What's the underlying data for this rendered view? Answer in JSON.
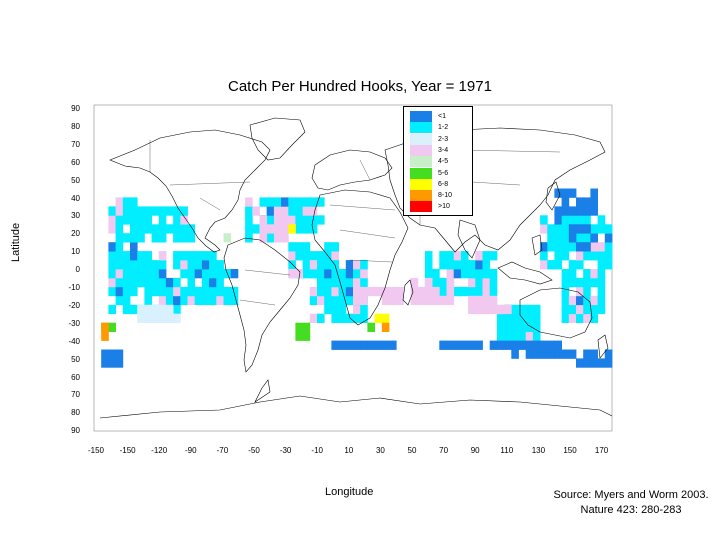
{
  "title": "Catch Per Hundred Hooks, Year = 1971",
  "y_axis_label": "Latitude",
  "x_axis_label": "Longitude",
  "source_line1": "Source: Myers and Worm 2003.",
  "source_line2": "Nature 423: 280-283",
  "lat_ticks": [
    "90",
    "80",
    "70",
    "60",
    "50",
    "40",
    "30",
    "20",
    "10",
    "0",
    "-10",
    "-20",
    "-30",
    "-40",
    "50",
    "60",
    "70",
    "80",
    "90"
  ],
  "lon_ticks": [
    "-150",
    "-150",
    "-120",
    "-90",
    "-70",
    "-50",
    "-30",
    "-10",
    "10",
    "30",
    "50",
    "70",
    "90",
    "110",
    "130",
    "150",
    "170"
  ],
  "legend": [
    {
      "label": "<1",
      "color": "#1a7fe6"
    },
    {
      "label": "1-2",
      "color": "#00eeff"
    },
    {
      "label": "2-3",
      "color": "#d9f0ff"
    },
    {
      "label": "3-4",
      "color": "#f0c8f0"
    },
    {
      "label": "4-5",
      "color": "#c8f0c8"
    },
    {
      "label": "5-6",
      "color": "#44dd22"
    },
    {
      "label": "6-8",
      "color": "#ffff00"
    },
    {
      "label": "8-10",
      "color": "#ff9900"
    },
    {
      "label": ">10",
      "color": "#ff0000"
    }
  ],
  "chart_data": {
    "type": "heatmap",
    "title": "Catch Per Hundred Hooks, Year = 1971",
    "xlabel": "Longitude",
    "ylabel": "Latitude",
    "xlim": [
      -180,
      180
    ],
    "ylim": [
      -90,
      90
    ],
    "cell_size_deg": 5,
    "scale_labels": [
      "<1",
      "1-2",
      "2-3",
      "3-4",
      "4-5",
      "5-6",
      "6-8",
      "8-10",
      ">10"
    ],
    "regions": [
      {
        "lon": [
          -170,
          -120
        ],
        "lat": [
          -25,
          10
        ],
        "class": 1
      },
      {
        "lon": [
          -170,
          -150
        ],
        "lat": [
          10,
          40
        ],
        "class": 1
      },
      {
        "lon": [
          -150,
          -110
        ],
        "lat": [
          15,
          35
        ],
        "class": 1
      },
      {
        "lon": [
          -120,
          -90
        ],
        "lat": [
          -20,
          10
        ],
        "class": 1
      },
      {
        "lon": [
          -90,
          -80
        ],
        "lat": [
          -20,
          0
        ],
        "class": 1
      },
      {
        "lon": [
          -75,
          -55
        ],
        "lat": [
          15,
          40
        ],
        "class": 1
      },
      {
        "lon": [
          -60,
          -20
        ],
        "lat": [
          20,
          40
        ],
        "class": 1
      },
      {
        "lon": [
          -45,
          -10
        ],
        "lat": [
          -5,
          15
        ],
        "class": 1
      },
      {
        "lon": [
          -30,
          10
        ],
        "lat": [
          -30,
          5
        ],
        "class": 1
      },
      {
        "lon": [
          50,
          100
        ],
        "lat": [
          -15,
          10
        ],
        "class": 1
      },
      {
        "lon": [
          100,
          130
        ],
        "lat": [
          -40,
          -20
        ],
        "class": 1
      },
      {
        "lon": [
          130,
          180
        ],
        "lat": [
          0,
          30
        ],
        "class": 1
      },
      {
        "lon": [
          145,
          175
        ],
        "lat": [
          -30,
          0
        ],
        "class": 1
      },
      {
        "lon": [
          140,
          170
        ],
        "lat": [
          30,
          45
        ],
        "class": 0
      },
      {
        "lon": [
          150,
          165
        ],
        "lat": [
          10,
          25
        ],
        "class": 0
      },
      {
        "lon": [
          -175,
          -160
        ],
        "lat": [
          -55,
          -45
        ],
        "class": 0
      },
      {
        "lon": [
          -20,
          30
        ],
        "lat": [
          -45,
          -40
        ],
        "class": 0
      },
      {
        "lon": [
          60,
          110
        ],
        "lat": [
          -45,
          -40
        ],
        "class": 0
      },
      {
        "lon": [
          110,
          150
        ],
        "lat": [
          -50,
          -40
        ],
        "class": 0
      },
      {
        "lon": [
          150,
          180
        ],
        "lat": [
          -55,
          -45
        ],
        "class": 0
      },
      {
        "lon": [
          -150,
          -120
        ],
        "lat": [
          -30,
          -20
        ],
        "class": 2
      },
      {
        "lon": [
          -65,
          -45
        ],
        "lat": [
          15,
          30
        ],
        "class": 3
      },
      {
        "lon": [
          0,
          35
        ],
        "lat": [
          -20,
          -10
        ],
        "class": 3
      },
      {
        "lon": [
          40,
          70
        ],
        "lat": [
          -20,
          -5
        ],
        "class": 3
      },
      {
        "lon": [
          80,
          110
        ],
        "lat": [
          -25,
          -15
        ],
        "class": 3
      },
      {
        "lon": [
          -45,
          -35
        ],
        "lat": [
          -5,
          0
        ],
        "class": 3
      },
      {
        "lon": [
          -95,
          -85
        ],
        "lat": [
          15,
          25
        ],
        "class": 4
      },
      {
        "lon": [
          -40,
          -30
        ],
        "lat": [
          -40,
          -30
        ],
        "class": 5
      },
      {
        "lon": [
          -175,
          -165
        ],
        "lat": [
          -35,
          -30
        ],
        "class": 5
      },
      {
        "lon": [
          10,
          20
        ],
        "lat": [
          -35,
          -30
        ],
        "class": 5
      },
      {
        "lon": [
          15,
          25
        ],
        "lat": [
          -30,
          -25
        ],
        "class": 6
      },
      {
        "lon": [
          -50,
          -40
        ],
        "lat": [
          20,
          25
        ],
        "class": 6
      },
      {
        "lon": [
          -175,
          -170
        ],
        "lat": [
          -40,
          -30
        ],
        "class": 7
      },
      {
        "lon": [
          20,
          25
        ],
        "lat": [
          -35,
          -30
        ],
        "class": 7
      }
    ]
  }
}
